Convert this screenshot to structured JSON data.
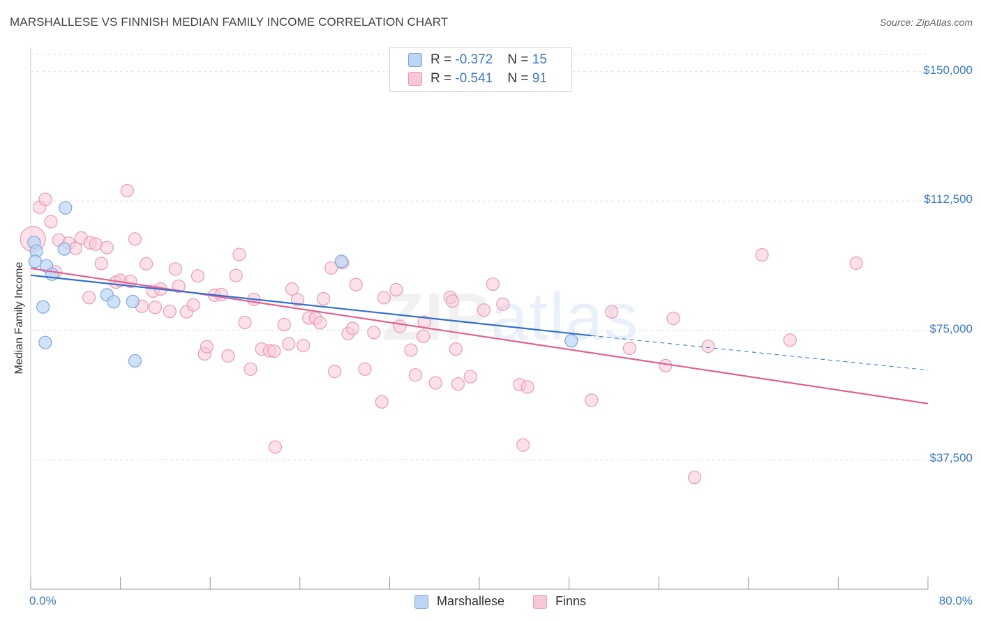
{
  "title": "MARSHALLESE VS FINNISH MEDIAN FAMILY INCOME CORRELATION CHART",
  "source": "Source: ZipAtlas.com",
  "watermark": {
    "zip": "ZIP",
    "atlas": "atlas"
  },
  "legend_top": [
    {
      "r_label": "R = ",
      "r_value": "-0.372",
      "n_label": "N = ",
      "n_value": "15",
      "color": "#a9c8f0"
    },
    {
      "r_label": "R = ",
      "r_value": "-0.541",
      "n_label": "N = ",
      "n_value": "91",
      "color": "#f6b8cb"
    }
  ],
  "legend_bottom": [
    {
      "name": "Marshallese",
      "color": "#a9c8f0"
    },
    {
      "name": "Finns",
      "color": "#f6b8cb"
    }
  ],
  "colors": {
    "marshallese_fill": "#bcd5f5",
    "marshallese_stroke": "#7aa7e0",
    "marshallese_line": "#2f6fcf",
    "finns_fill": "#f9c8d7",
    "finns_stroke": "#ec9ab5",
    "finns_line": "#e0608f",
    "axis_text": "#3a78c9",
    "grid": "#dddddd"
  },
  "chart_data": {
    "type": "scatter",
    "title": "MARSHALLESE VS FINNISH MEDIAN FAMILY INCOME CORRELATION CHART",
    "xlabel": "",
    "ylabel": "Median Family Income",
    "x_tick_labels": [
      "0.0%",
      "80.0%"
    ],
    "xlim": [
      0,
      80
    ],
    "ylim": [
      0,
      155000
    ],
    "y_ticks": [
      37500,
      75000,
      112500,
      150000
    ],
    "y_tick_labels": [
      "$37,500",
      "$75,000",
      "$112,500",
      "$150,000"
    ],
    "grid": "horizontal dashed",
    "legend_position": "top-center",
    "series": [
      {
        "name": "Marshallese",
        "r": -0.372,
        "n": 15,
        "points": [
          [
            0.3,
            100500
          ],
          [
            0.5,
            98000
          ],
          [
            0.4,
            95000
          ],
          [
            1.4,
            93700
          ],
          [
            1.9,
            91300
          ],
          [
            3.1,
            110500
          ],
          [
            3.0,
            98600
          ],
          [
            1.1,
            81800
          ],
          [
            1.3,
            71500
          ],
          [
            6.8,
            85300
          ],
          [
            7.4,
            83300
          ],
          [
            9.1,
            83400
          ],
          [
            9.3,
            66200
          ],
          [
            27.7,
            95000
          ],
          [
            48.2,
            72000
          ]
        ],
        "trend": {
          "x0": 0,
          "y0": 91000,
          "x1": 50,
          "y1": 73500,
          "dash_to_x": 80,
          "dash_to_y": 63500
        }
      },
      {
        "name": "Finns",
        "r": -0.541,
        "n": 91,
        "points": [
          [
            0.2,
            101500
          ],
          [
            0.8,
            110700
          ],
          [
            1.3,
            113000
          ],
          [
            1.8,
            106500
          ],
          [
            2.5,
            101200
          ],
          [
            2.2,
            92000
          ],
          [
            3.4,
            100300
          ],
          [
            4.0,
            98800
          ],
          [
            4.5,
            101800
          ],
          [
            5.3,
            100400
          ],
          [
            5.8,
            100000
          ],
          [
            6.3,
            94400
          ],
          [
            6.8,
            99000
          ],
          [
            5.2,
            84500
          ],
          [
            7.6,
            89000
          ],
          [
            8.0,
            89500
          ],
          [
            8.6,
            115500
          ],
          [
            8.9,
            89200
          ],
          [
            9.3,
            101500
          ],
          [
            9.9,
            82000
          ],
          [
            10.3,
            94300
          ],
          [
            10.9,
            86400
          ],
          [
            11.1,
            81700
          ],
          [
            11.6,
            87000
          ],
          [
            12.4,
            80500
          ],
          [
            12.9,
            92800
          ],
          [
            13.2,
            87800
          ],
          [
            13.9,
            80400
          ],
          [
            14.5,
            82400
          ],
          [
            14.9,
            90800
          ],
          [
            15.5,
            68200
          ],
          [
            15.7,
            70300
          ],
          [
            16.4,
            85200
          ],
          [
            17.0,
            85400
          ],
          [
            17.6,
            67600
          ],
          [
            18.3,
            90900
          ],
          [
            18.6,
            97000
          ],
          [
            19.1,
            77300
          ],
          [
            19.6,
            63800
          ],
          [
            19.9,
            84000
          ],
          [
            20.6,
            69600
          ],
          [
            21.3,
            69100
          ],
          [
            21.7,
            69000
          ],
          [
            21.8,
            41200
          ],
          [
            22.6,
            76700
          ],
          [
            23.0,
            71100
          ],
          [
            23.3,
            87000
          ],
          [
            23.8,
            83900
          ],
          [
            24.3,
            70600
          ],
          [
            24.8,
            78600
          ],
          [
            25.4,
            78500
          ],
          [
            25.8,
            77200
          ],
          [
            26.1,
            84200
          ],
          [
            26.8,
            93100
          ],
          [
            27.1,
            63100
          ],
          [
            27.8,
            94600
          ],
          [
            28.3,
            74100
          ],
          [
            28.7,
            75600
          ],
          [
            29.0,
            88300
          ],
          [
            29.8,
            63800
          ],
          [
            30.6,
            74400
          ],
          [
            31.3,
            54300
          ],
          [
            31.5,
            84500
          ],
          [
            32.6,
            86800
          ],
          [
            32.9,
            76200
          ],
          [
            33.9,
            69300
          ],
          [
            34.3,
            62100
          ],
          [
            35.0,
            73300
          ],
          [
            35.1,
            77400
          ],
          [
            36.1,
            59800
          ],
          [
            37.4,
            84600
          ],
          [
            37.6,
            83500
          ],
          [
            37.9,
            69600
          ],
          [
            38.1,
            59500
          ],
          [
            39.2,
            61600
          ],
          [
            40.4,
            80900
          ],
          [
            41.2,
            88400
          ],
          [
            42.1,
            82600
          ],
          [
            43.6,
            59300
          ],
          [
            43.9,
            41800
          ],
          [
            44.3,
            58600
          ],
          [
            50.0,
            54800
          ],
          [
            51.8,
            80400
          ],
          [
            53.4,
            69800
          ],
          [
            56.6,
            64800
          ],
          [
            57.3,
            78500
          ],
          [
            59.2,
            32400
          ],
          [
            60.4,
            70400
          ],
          [
            65.2,
            96900
          ],
          [
            67.7,
            72200
          ],
          [
            73.6,
            94500
          ]
        ],
        "trend": {
          "x0": 0,
          "y0": 93000,
          "x1": 80,
          "y1": 53800
        }
      }
    ]
  }
}
